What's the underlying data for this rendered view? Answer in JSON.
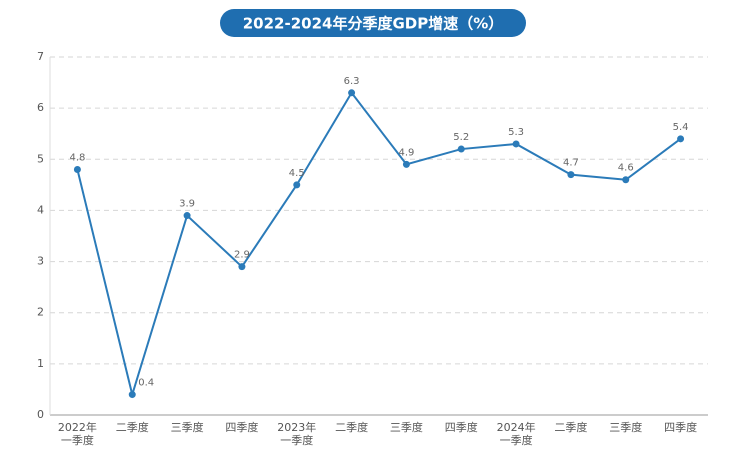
{
  "chart_data": {
    "type": "line",
    "title": "2022-2024年分季度GDP增速（%）",
    "categories": [
      "2022年\n一季度",
      "二季度",
      "三季度",
      "四季度",
      "2023年\n一季度",
      "二季度",
      "三季度",
      "四季度",
      "2024年\n一季度",
      "二季度",
      "三季度",
      "四季度"
    ],
    "values": [
      4.8,
      0.4,
      3.9,
      2.9,
      4.5,
      6.3,
      4.9,
      5.2,
      5.3,
      4.7,
      4.6,
      5.4
    ],
    "color": "#2b7bb9",
    "ylim": [
      0,
      7
    ],
    "yticks": [
      0,
      1,
      2,
      3,
      4,
      5,
      6,
      7
    ],
    "grid": true
  }
}
